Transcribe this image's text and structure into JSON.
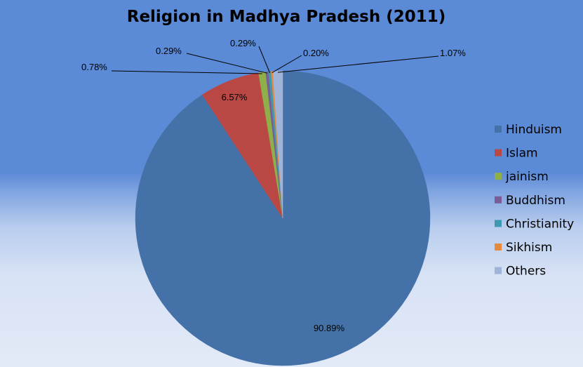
{
  "chart_data": {
    "type": "pie",
    "title": "Religion in Madhya Pradesh (2011)",
    "categories": [
      "Hinduism",
      "Islam",
      "jainism",
      "Buddhism",
      "Christianity",
      "Sikhism",
      "Others"
    ],
    "values": [
      90.89,
      6.57,
      0.78,
      0.29,
      0.29,
      0.2,
      1.07
    ],
    "data_labels": [
      "90.89%",
      "6.57%",
      "0.78%",
      "0.29%",
      "0.29%",
      "0.20%",
      "1.07%"
    ],
    "colors": [
      "#4472a8",
      "#b94744",
      "#8faf4a",
      "#7a5c97",
      "#3c9ab0",
      "#e6893d",
      "#9fb4d8"
    ],
    "start_angle_deg": 0,
    "direction": "clockwise",
    "legend": {
      "position": "right",
      "entries": [
        "Hinduism",
        "Islam",
        "jainism",
        "Buddhism",
        "Christianity",
        "Sikhism",
        "Others"
      ]
    }
  }
}
